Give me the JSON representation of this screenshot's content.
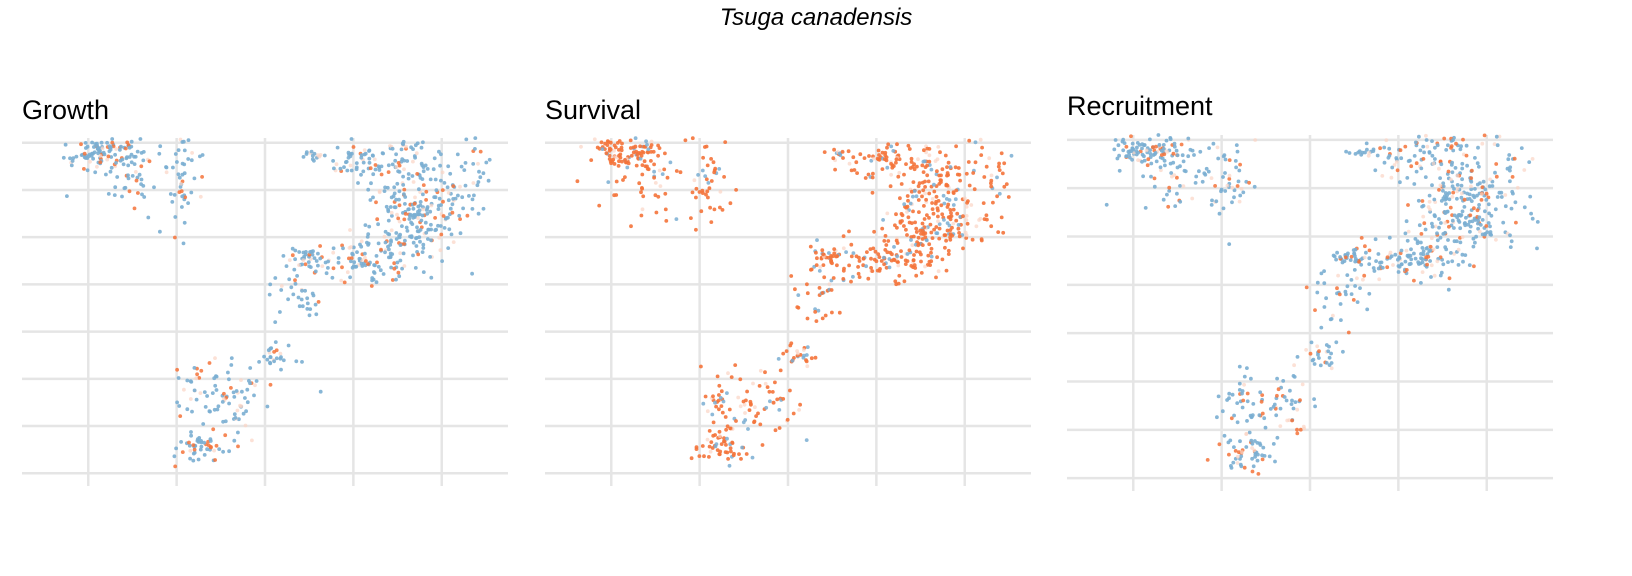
{
  "chart_data": {
    "type": "scatter",
    "title": "Tsuga canadensis",
    "xlabel": "",
    "ylabel": "",
    "grid": true,
    "legend": "none",
    "colors": {
      "low": "#f4733a",
      "high": "#7aaed2",
      "faint": "#fbd4c4"
    },
    "panels": [
      {
        "name": "Growth",
        "dominant": "high",
        "seed": 11
      },
      {
        "name": "Survival",
        "dominant": "low",
        "seed": 29
      },
      {
        "name": "Recruitment",
        "dominant": "high",
        "seed": 47
      }
    ],
    "clusters": [
      {
        "cx": 1.3,
        "cy": 6.8,
        "sx": 0.38,
        "sy": 0.14,
        "n": 90
      },
      {
        "cx": 1.9,
        "cy": 6.3,
        "sx": 0.55,
        "sy": 0.42,
        "n": 60
      },
      {
        "cx": 3.2,
        "cy": 6.35,
        "sx": 0.22,
        "sy": 0.55,
        "n": 45
      },
      {
        "cx": 6.1,
        "cy": 6.75,
        "sx": 0.15,
        "sy": 0.06,
        "n": 14
      },
      {
        "cx": 7.2,
        "cy": 6.6,
        "sx": 0.42,
        "sy": 0.22,
        "n": 55
      },
      {
        "cx": 8.3,
        "cy": 6.5,
        "sx": 0.38,
        "sy": 0.35,
        "n": 60
      },
      {
        "cx": 9.6,
        "cy": 6.55,
        "sx": 0.28,
        "sy": 0.45,
        "n": 28
      },
      {
        "cx": 8.6,
        "cy": 5.5,
        "sx": 0.55,
        "sy": 0.45,
        "n": 160
      },
      {
        "cx": 7.9,
        "cy": 5.2,
        "sx": 0.32,
        "sy": 0.55,
        "n": 70
      },
      {
        "cx": 7.1,
        "cy": 4.5,
        "sx": 0.55,
        "sy": 0.22,
        "n": 90
      },
      {
        "cx": 5.9,
        "cy": 4.55,
        "sx": 0.2,
        "sy": 0.12,
        "n": 30
      },
      {
        "cx": 5.7,
        "cy": 3.8,
        "sx": 0.3,
        "sy": 0.32,
        "n": 35
      },
      {
        "cx": 5.2,
        "cy": 2.5,
        "sx": 0.24,
        "sy": 0.16,
        "n": 25
      },
      {
        "cx": 4.2,
        "cy": 1.5,
        "sx": 0.55,
        "sy": 0.4,
        "n": 70
      },
      {
        "cx": 3.5,
        "cy": 0.55,
        "sx": 0.32,
        "sy": 0.18,
        "n": 50
      },
      {
        "cx": 3.4,
        "cy": 1.7,
        "sx": 0.22,
        "sy": 0.3,
        "n": 18
      }
    ]
  }
}
